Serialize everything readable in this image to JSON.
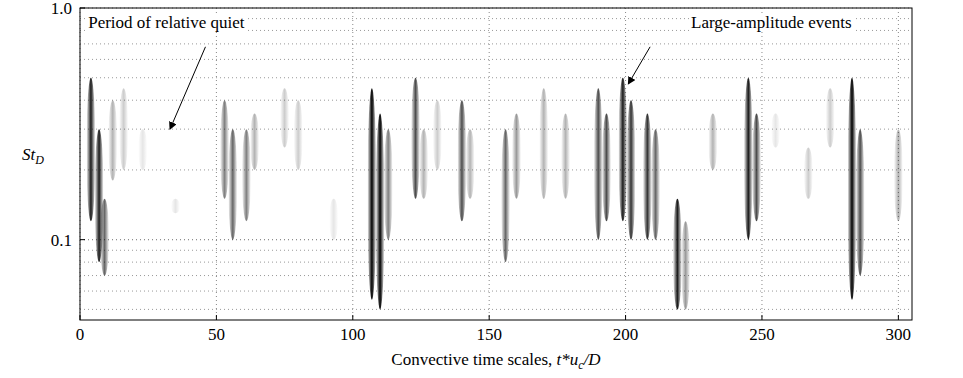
{
  "chart_data": {
    "type": "scalogram",
    "xlabel": [
      {
        "text": "Convective time scales, "
      },
      {
        "text": "t*u",
        "italic": true
      },
      {
        "text": "c",
        "italic": true,
        "sub": true
      },
      {
        "text": "/D",
        "italic": true
      }
    ],
    "ylabel": "St",
    "ylabel_sub": "D",
    "xlim": [
      0,
      305
    ],
    "xticks": [
      0,
      50,
      100,
      150,
      200,
      250,
      300
    ],
    "ylim": [
      0.045,
      1
    ],
    "yticks": [
      0.1,
      {
        "value": 1,
        "label": "1.0"
      }
    ],
    "log": "y",
    "grid": true,
    "annotations": [
      {
        "text": "Period of relative quiet",
        "x": 3,
        "y": 0.82,
        "arrow_from_x": 46,
        "arrow_from_y": 0.68,
        "arrow_x": 33,
        "arrow_y": 0.3
      },
      {
        "text": "Large-amplitude events",
        "x": 224,
        "y": 0.82,
        "arrow_from_x": 209,
        "arrow_from_y": 0.68,
        "arrow_x": 201,
        "arrow_y": 0.47
      }
    ],
    "events": [
      {
        "t": 4,
        "st_low": 0.12,
        "st_high": 0.5,
        "intensity": 0.9
      },
      {
        "t": 7,
        "st_low": 0.08,
        "st_high": 0.3,
        "intensity": 0.9
      },
      {
        "t": 9,
        "st_low": 0.07,
        "st_high": 0.15,
        "intensity": 0.6
      },
      {
        "t": 12,
        "st_low": 0.18,
        "st_high": 0.4,
        "intensity": 0.3
      },
      {
        "t": 16,
        "st_low": 0.2,
        "st_high": 0.45,
        "intensity": 0.2
      },
      {
        "t": 23,
        "st_low": 0.2,
        "st_high": 0.3,
        "intensity": 0.1
      },
      {
        "t": 35,
        "st_low": 0.13,
        "st_high": 0.15,
        "intensity": 0.1
      },
      {
        "t": 53,
        "st_low": 0.15,
        "st_high": 0.4,
        "intensity": 0.5
      },
      {
        "t": 56,
        "st_low": 0.1,
        "st_high": 0.3,
        "intensity": 0.6
      },
      {
        "t": 61,
        "st_low": 0.12,
        "st_high": 0.3,
        "intensity": 0.5
      },
      {
        "t": 64,
        "st_low": 0.2,
        "st_high": 0.35,
        "intensity": 0.3
      },
      {
        "t": 75,
        "st_low": 0.25,
        "st_high": 0.45,
        "intensity": 0.2
      },
      {
        "t": 80,
        "st_low": 0.2,
        "st_high": 0.4,
        "intensity": 0.2
      },
      {
        "t": 93,
        "st_low": 0.1,
        "st_high": 0.15,
        "intensity": 0.1
      },
      {
        "t": 107,
        "st_low": 0.055,
        "st_high": 0.45,
        "intensity": 1
      },
      {
        "t": 110,
        "st_low": 0.05,
        "st_high": 0.35,
        "intensity": 1
      },
      {
        "t": 113,
        "st_low": 0.1,
        "st_high": 0.3,
        "intensity": 0.5
      },
      {
        "t": 123,
        "st_low": 0.15,
        "st_high": 0.5,
        "intensity": 0.7
      },
      {
        "t": 126,
        "st_low": 0.15,
        "st_high": 0.3,
        "intensity": 0.3
      },
      {
        "t": 131,
        "st_low": 0.2,
        "st_high": 0.4,
        "intensity": 0.2
      },
      {
        "t": 140,
        "st_low": 0.12,
        "st_high": 0.4,
        "intensity": 0.7
      },
      {
        "t": 143,
        "st_low": 0.15,
        "st_high": 0.3,
        "intensity": 0.3
      },
      {
        "t": 156,
        "st_low": 0.08,
        "st_high": 0.3,
        "intensity": 0.6
      },
      {
        "t": 160,
        "st_low": 0.15,
        "st_high": 0.35,
        "intensity": 0.4
      },
      {
        "t": 170,
        "st_low": 0.15,
        "st_high": 0.45,
        "intensity": 0.3
      },
      {
        "t": 178,
        "st_low": 0.15,
        "st_high": 0.35,
        "intensity": 0.3
      },
      {
        "t": 190,
        "st_low": 0.1,
        "st_high": 0.45,
        "intensity": 0.7
      },
      {
        "t": 193,
        "st_low": 0.12,
        "st_high": 0.35,
        "intensity": 0.7
      },
      {
        "t": 199,
        "st_low": 0.12,
        "st_high": 0.5,
        "intensity": 0.9
      },
      {
        "t": 202,
        "st_low": 0.1,
        "st_high": 0.4,
        "intensity": 0.8
      },
      {
        "t": 208,
        "st_low": 0.1,
        "st_high": 0.35,
        "intensity": 0.8
      },
      {
        "t": 211,
        "st_low": 0.1,
        "st_high": 0.3,
        "intensity": 0.6
      },
      {
        "t": 219,
        "st_low": 0.05,
        "st_high": 0.15,
        "intensity": 0.9
      },
      {
        "t": 222,
        "st_low": 0.05,
        "st_high": 0.12,
        "intensity": 0.4
      },
      {
        "t": 232,
        "st_low": 0.2,
        "st_high": 0.35,
        "intensity": 0.3
      },
      {
        "t": 245,
        "st_low": 0.1,
        "st_high": 0.5,
        "intensity": 0.9
      },
      {
        "t": 248,
        "st_low": 0.12,
        "st_high": 0.35,
        "intensity": 0.7
      },
      {
        "t": 255,
        "st_low": 0.25,
        "st_high": 0.35,
        "intensity": 0.1
      },
      {
        "t": 267,
        "st_low": 0.15,
        "st_high": 0.25,
        "intensity": 0.2
      },
      {
        "t": 275,
        "st_low": 0.25,
        "st_high": 0.45,
        "intensity": 0.2
      },
      {
        "t": 283,
        "st_low": 0.055,
        "st_high": 0.5,
        "intensity": 1
      },
      {
        "t": 286,
        "st_low": 0.07,
        "st_high": 0.3,
        "intensity": 0.7
      },
      {
        "t": 300,
        "st_low": 0.12,
        "st_high": 0.3,
        "intensity": 0.3
      }
    ]
  }
}
